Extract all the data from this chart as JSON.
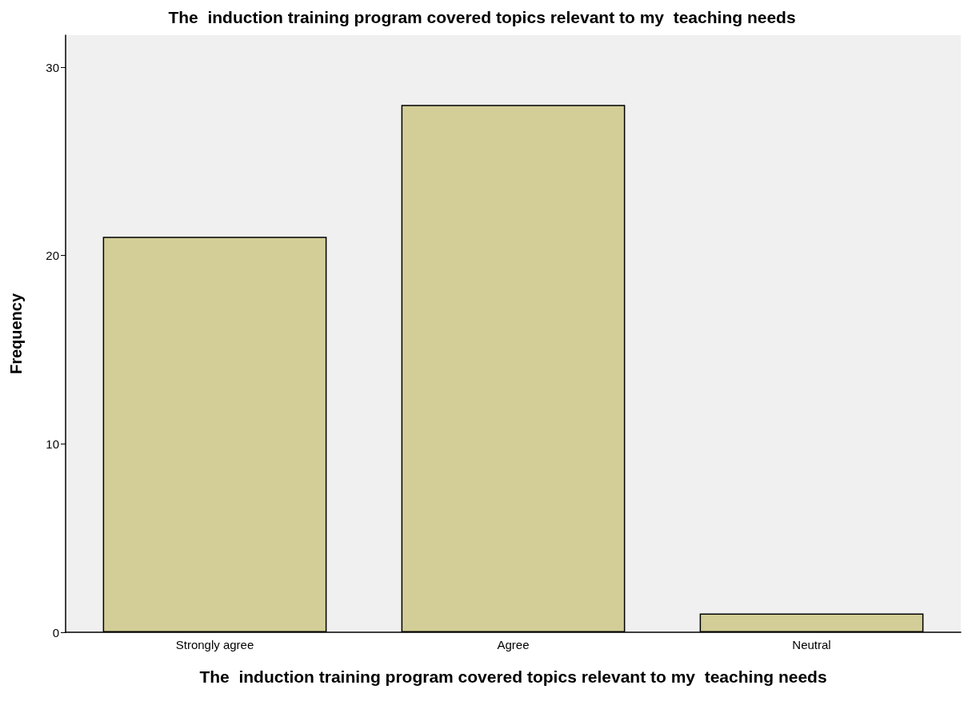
{
  "chart_data": {
    "type": "bar",
    "title": "The  induction training program covered topics relevant to my  teaching needs",
    "xlabel": "The  induction training program covered topics relevant to my  teaching needs",
    "ylabel": "Frequency",
    "categories": [
      "Strongly agree",
      "Agree",
      "Neutral"
    ],
    "values": [
      21,
      28,
      1
    ],
    "color": "#d3ce97",
    "ylim": [
      0,
      31.7
    ],
    "yticks": [
      0,
      10,
      20,
      30
    ],
    "grid": false
  }
}
